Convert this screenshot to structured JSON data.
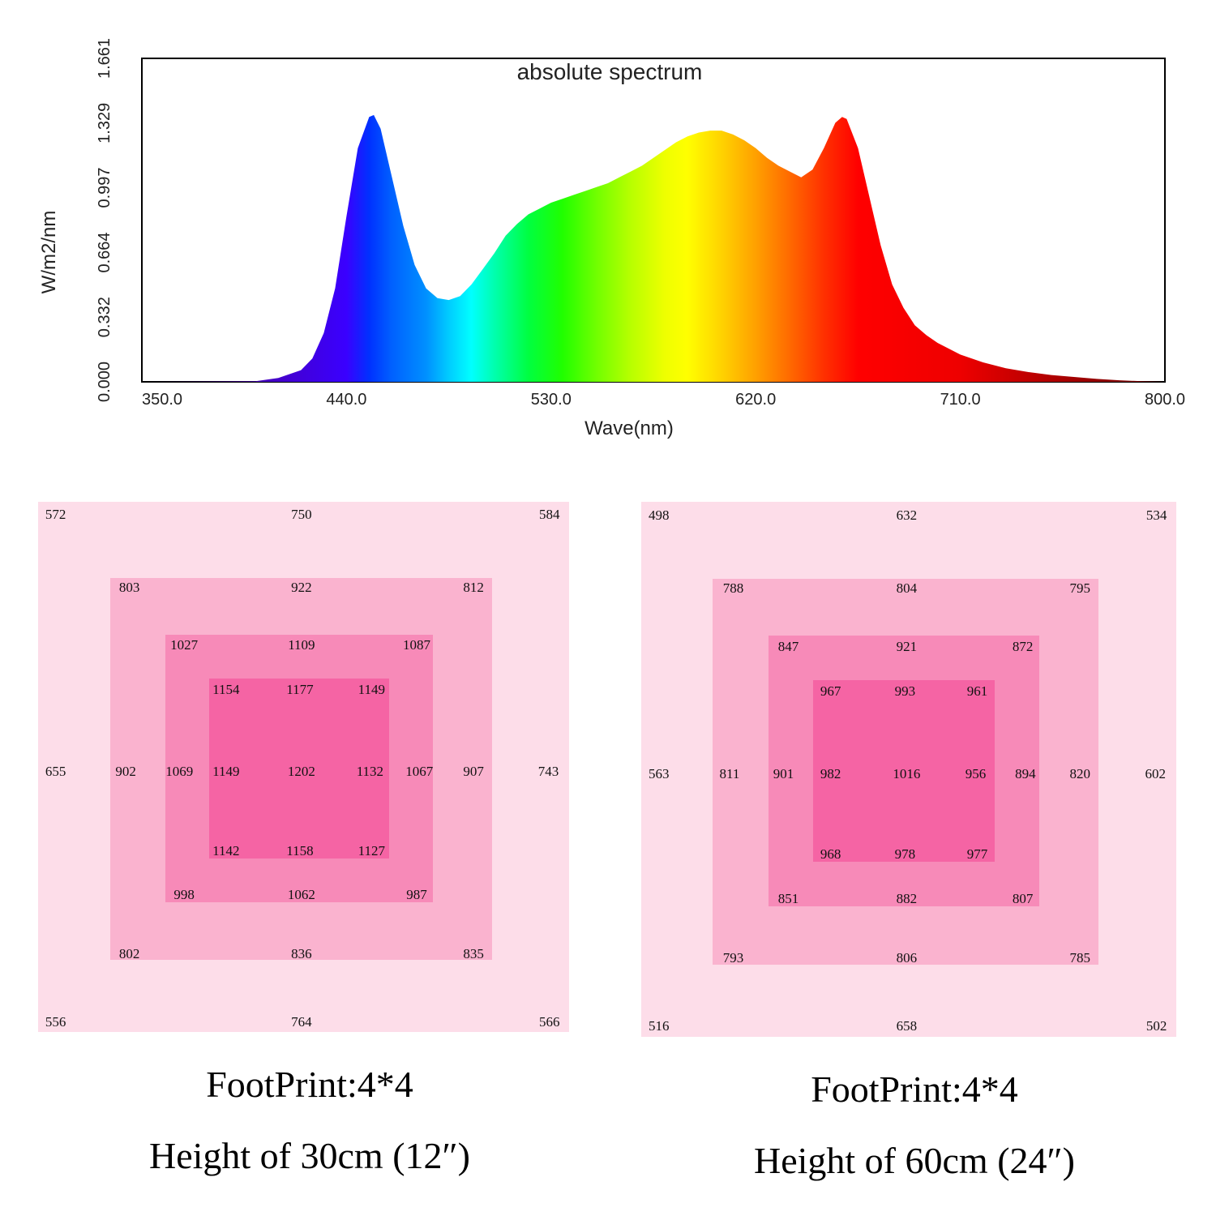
{
  "colors": {
    "ring1": "#fddde9",
    "ring2": "#fab3cf",
    "ring3": "#f78ab8",
    "ring4": "#f564a4"
  },
  "chart_data": {
    "type": "area",
    "title": "absolute spectrum",
    "xlabel": "Wave(nm)",
    "ylabel": "W/m2/nm",
    "xlim": [
      350,
      800
    ],
    "ylim": [
      0,
      1.661
    ],
    "xticks": [
      "350.0",
      "440.0",
      "530.0",
      "620.0",
      "710.0",
      "800.0"
    ],
    "yticks": [
      "0.000",
      "0.332",
      "0.664",
      "0.997",
      "1.329",
      "1.661"
    ],
    "series": [
      {
        "name": "absolute spectrum",
        "x": [
          350,
          400,
          410,
          420,
          425,
          430,
          435,
          440,
          445,
          450,
          452,
          455,
          460,
          465,
          470,
          475,
          480,
          485,
          490,
          495,
          500,
          505,
          510,
          515,
          520,
          525,
          530,
          535,
          540,
          545,
          550,
          555,
          560,
          565,
          570,
          575,
          580,
          585,
          590,
          595,
          600,
          605,
          610,
          615,
          620,
          625,
          630,
          635,
          640,
          645,
          650,
          655,
          658,
          660,
          665,
          670,
          675,
          680,
          685,
          690,
          695,
          700,
          710,
          720,
          730,
          740,
          750,
          760,
          770,
          780,
          790,
          800
        ],
        "y": [
          0.0,
          0.003,
          0.02,
          0.06,
          0.12,
          0.25,
          0.48,
          0.85,
          1.2,
          1.36,
          1.37,
          1.3,
          1.05,
          0.8,
          0.6,
          0.48,
          0.43,
          0.42,
          0.44,
          0.5,
          0.58,
          0.66,
          0.75,
          0.81,
          0.86,
          0.89,
          0.92,
          0.94,
          0.96,
          0.98,
          1.0,
          1.02,
          1.05,
          1.08,
          1.11,
          1.15,
          1.19,
          1.23,
          1.26,
          1.28,
          1.29,
          1.29,
          1.27,
          1.24,
          1.2,
          1.15,
          1.11,
          1.08,
          1.05,
          1.09,
          1.2,
          1.33,
          1.36,
          1.35,
          1.2,
          0.95,
          0.7,
          0.5,
          0.38,
          0.29,
          0.24,
          0.2,
          0.14,
          0.1,
          0.07,
          0.05,
          0.035,
          0.025,
          0.015,
          0.008,
          0.003,
          0.0
        ]
      }
    ]
  },
  "maps": [
    {
      "footprint": "FootPrint:4*4",
      "height": "Height of 30cm (12″)",
      "rows": [
        [
          "572",
          "750",
          "584"
        ],
        [
          "803",
          "922",
          "812"
        ],
        [
          "1027",
          "1109",
          "1087"
        ],
        [
          "1154",
          "1177",
          "1149"
        ],
        [
          "655",
          "902",
          "1069",
          "1149",
          "1202",
          "1132",
          "1067",
          "907",
          "743"
        ],
        [
          "1142",
          "1158",
          "1127"
        ],
        [
          "998",
          "1062",
          "987"
        ],
        [
          "802",
          "836",
          "835"
        ],
        [
          "556",
          "764",
          "566"
        ]
      ]
    },
    {
      "footprint": "FootPrint:4*4",
      "height": "Height of 60cm (24″)",
      "rows": [
        [
          "498",
          "632",
          "534"
        ],
        [
          "788",
          "804",
          "795"
        ],
        [
          "847",
          "921",
          "872"
        ],
        [
          "967",
          "993",
          "961"
        ],
        [
          "563",
          "811",
          "901",
          "982",
          "1016",
          "956",
          "894",
          "820",
          "602"
        ],
        [
          "968",
          "978",
          "977"
        ],
        [
          "851",
          "882",
          "807"
        ],
        [
          "793",
          "806",
          "785"
        ],
        [
          "516",
          "658",
          "502"
        ]
      ]
    }
  ]
}
